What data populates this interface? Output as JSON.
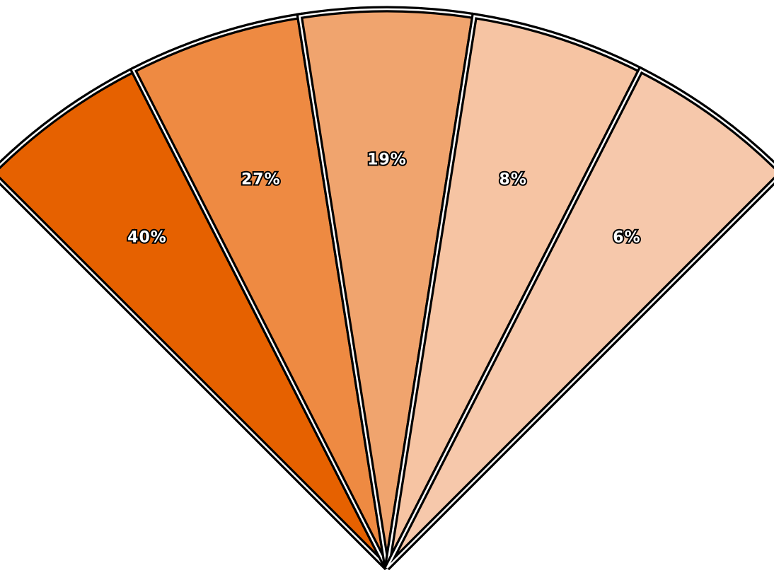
{
  "chart_data": {
    "type": "pie",
    "variant": "fan",
    "title": "",
    "legend": "none",
    "slices": [
      {
        "label": "40%",
        "value": 40,
        "color": "#E66100"
      },
      {
        "label": "27%",
        "value": 27,
        "color": "#EE8A42"
      },
      {
        "label": "19%",
        "value": 19,
        "color": "#F0A46E"
      },
      {
        "label": "8%",
        "value": 8,
        "color": "#F6C4A3"
      },
      {
        "label": "6%",
        "value": 6,
        "color": "#F6C8AB"
      }
    ]
  }
}
